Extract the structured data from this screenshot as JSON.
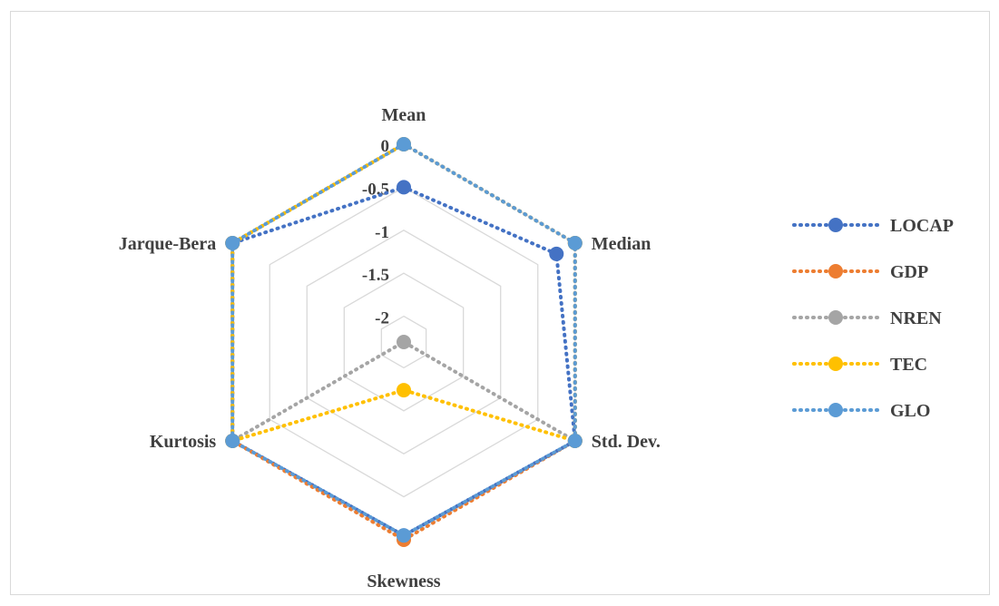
{
  "chart_data": {
    "type": "radar",
    "axes": [
      "Mean",
      "Median",
      "Std. Dev.",
      "Skewness",
      "Kurtosis",
      "Jarque-Bera"
    ],
    "rlim": [
      -2.3,
      0
    ],
    "ticks": [
      0,
      -0.5,
      -1,
      -1.5,
      -2
    ],
    "tick_labels": [
      "0",
      "-0.5",
      "-1",
      "-1.5",
      "-2"
    ],
    "grid": true,
    "legend_position": "right",
    "series": [
      {
        "name": "LOCAP",
        "color": "#4472c4",
        "values": [
          -0.5,
          -0.25,
          0,
          -0.05,
          0,
          0
        ]
      },
      {
        "name": "GDP",
        "color": "#ed7d31",
        "values": [
          0,
          0,
          0,
          0,
          0,
          0
        ]
      },
      {
        "name": "NREN",
        "color": "#a5a5a5",
        "values": [
          0,
          0,
          0,
          -2.3,
          0,
          0
        ]
      },
      {
        "name": "TEC",
        "color": "#ffc000",
        "values": [
          0,
          0,
          0,
          -1.74,
          0,
          0
        ]
      },
      {
        "name": "GLO",
        "color": "#5b9bd5",
        "values": [
          0,
          0,
          0,
          -0.05,
          0,
          0
        ]
      }
    ]
  }
}
